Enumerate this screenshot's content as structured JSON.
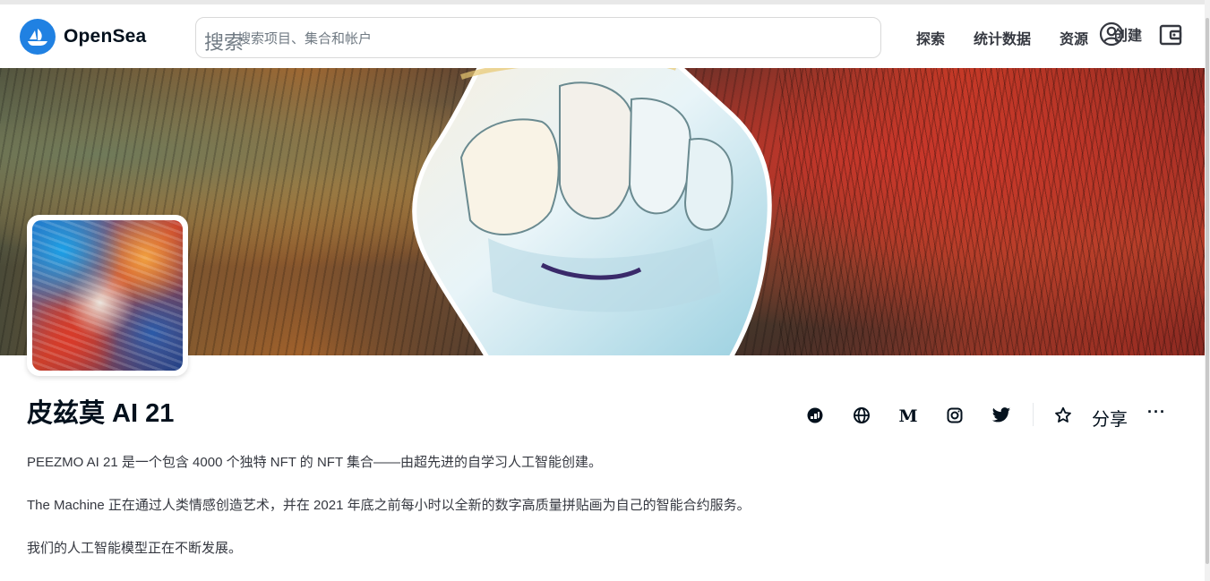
{
  "header": {
    "logo_text": "OpenSea",
    "search": {
      "icon_label": "搜索",
      "placeholder": "搜索项目、集合和帐户"
    },
    "nav": {
      "explore": "探索",
      "stats": "统计数据",
      "resources": "资源",
      "create": "创建"
    }
  },
  "collection": {
    "name": "皮兹莫 AI 21",
    "share_label": "分享",
    "more_label": "···",
    "description": [
      "PEEZMO AI 21 是一个包含 4000 个独特 NFT 的 NFT 集合——由超先进的自学习人工智能创建。",
      "The Machine 正在通过人类情感创造艺术，并在 2021 年底之前每小时以全新的数字高质量拼贴画为自己的智能合约服务。",
      "我们的人工智能模型正在不断发展。"
    ]
  },
  "icons": [
    "opensea-logo-icon",
    "account-icon",
    "wallet-icon",
    "etherscan-icon",
    "globe-icon",
    "medium-icon",
    "instagram-icon",
    "twitter-icon",
    "star-icon"
  ],
  "colors": {
    "brand": "#2081e2",
    "text": "#04111d",
    "muted": "#707a83"
  }
}
